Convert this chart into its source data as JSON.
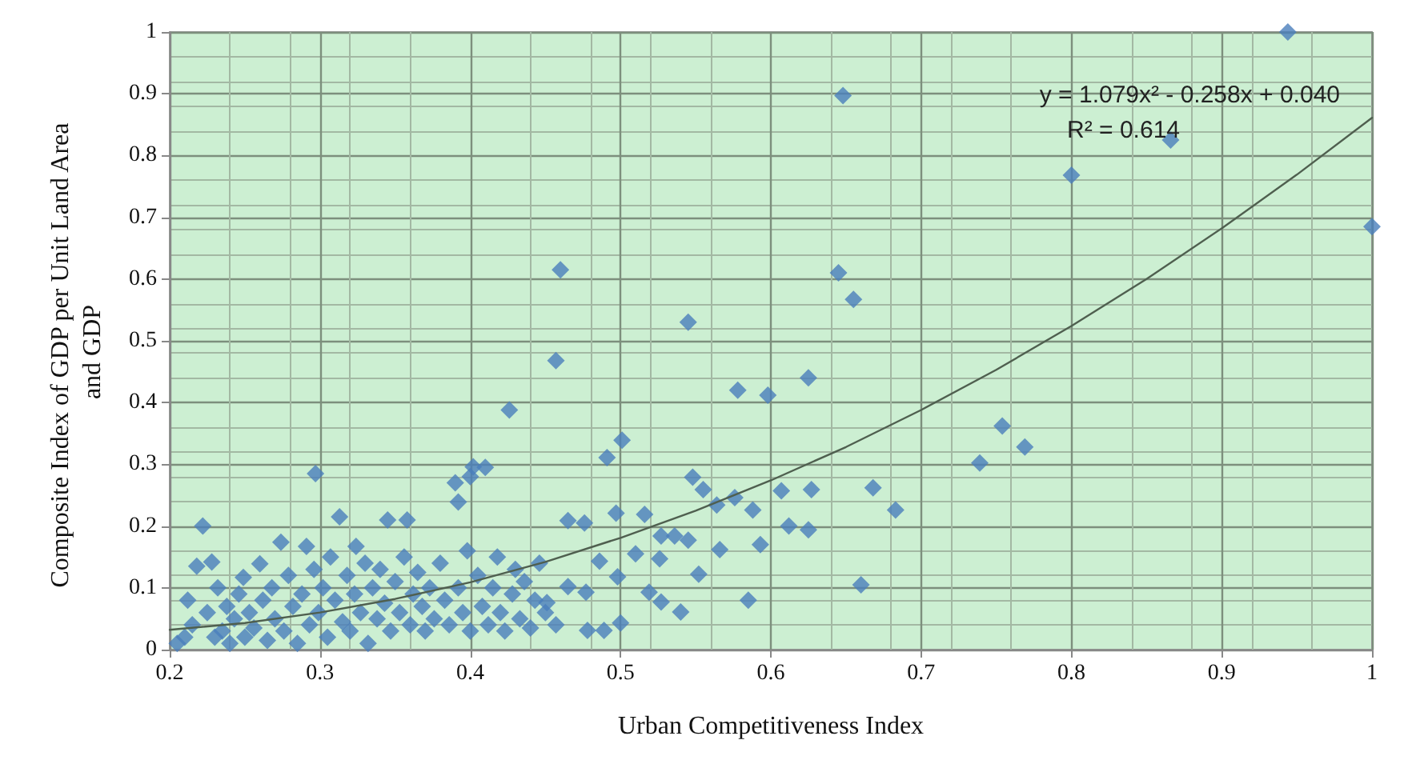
{
  "chart_data": {
    "type": "scatter",
    "xlabel": "Urban Competitiveness Index",
    "ylabel": "Composite Index of GDP per Unit Land Area and GDP",
    "annotations": [
      "y = 1.079x² - 0.258x + 0.040",
      "R² = 0.614"
    ],
    "xlim": [
      0.2,
      1
    ],
    "xticks": [
      0.2,
      0.3,
      0.4,
      0.5,
      0.6,
      0.7,
      0.8,
      0.9,
      1
    ],
    "ylim": [
      0,
      1
    ],
    "yticks": [
      0,
      0.1,
      0.2,
      0.3,
      0.4,
      0.5,
      0.6,
      0.7,
      0.8,
      0.9,
      1
    ],
    "grid": true,
    "marker": "diamond",
    "series": [
      {
        "color": "#4a7ebb",
        "x": [
          0.205,
          0.21,
          0.212,
          0.215,
          0.218,
          0.222,
          0.225,
          0.228,
          0.23,
          0.232,
          0.235,
          0.238,
          0.24,
          0.243,
          0.246,
          0.249,
          0.25,
          0.253,
          0.256,
          0.26,
          0.262,
          0.265,
          0.268,
          0.27,
          0.274,
          0.276,
          0.279,
          0.282,
          0.285,
          0.288,
          0.291,
          0.293,
          0.296,
          0.297,
          0.299,
          0.302,
          0.305,
          0.307,
          0.31,
          0.313,
          0.315,
          0.318,
          0.32,
          0.323,
          0.324,
          0.327,
          0.33,
          0.332,
          0.335,
          0.338,
          0.34,
          0.343,
          0.345,
          0.347,
          0.35,
          0.353,
          0.356,
          0.358,
          0.36,
          0.362,
          0.365,
          0.368,
          0.37,
          0.373,
          0.376,
          0.38,
          0.383,
          0.386,
          0.39,
          0.392,
          0.392,
          0.395,
          0.398,
          0.4,
          0.4,
          0.402,
          0.405,
          0.408,
          0.41,
          0.412,
          0.415,
          0.418,
          0.42,
          0.423,
          0.426,
          0.428,
          0.43,
          0.433,
          0.436,
          0.44,
          0.443,
          0.446,
          0.45,
          0.451,
          0.457,
          0.457,
          0.46,
          0.465,
          0.465,
          0.476,
          0.477,
          0.478,
          0.486,
          0.489,
          0.491,
          0.497,
          0.498,
          0.5,
          0.501,
          0.51,
          0.516,
          0.519,
          0.526,
          0.527,
          0.527,
          0.536,
          0.54,
          0.545,
          0.545,
          0.548,
          0.552,
          0.555,
          0.564,
          0.566,
          0.576,
          0.578,
          0.585,
          0.588,
          0.593,
          0.598,
          0.607,
          0.612,
          0.625,
          0.625,
          0.627,
          0.645,
          0.648,
          0.655,
          0.66,
          0.668,
          0.683,
          0.739,
          0.754,
          0.769,
          0.8,
          0.866,
          0.944,
          1.0
        ],
        "values": [
          0.01,
          0.02,
          0.08,
          0.04,
          0.135,
          0.2,
          0.06,
          0.142,
          0.02,
          0.1,
          0.03,
          0.07,
          0.01,
          0.05,
          0.09,
          0.117,
          0.02,
          0.06,
          0.035,
          0.139,
          0.08,
          0.015,
          0.1,
          0.05,
          0.174,
          0.03,
          0.12,
          0.07,
          0.01,
          0.09,
          0.167,
          0.04,
          0.13,
          0.285,
          0.06,
          0.1,
          0.02,
          0.15,
          0.08,
          0.215,
          0.045,
          0.12,
          0.03,
          0.09,
          0.167,
          0.06,
          0.14,
          0.01,
          0.1,
          0.05,
          0.13,
          0.075,
          0.21,
          0.03,
          0.11,
          0.06,
          0.15,
          0.21,
          0.04,
          0.09,
          0.125,
          0.07,
          0.03,
          0.1,
          0.05,
          0.14,
          0.08,
          0.04,
          0.27,
          0.239,
          0.1,
          0.06,
          0.16,
          0.28,
          0.03,
          0.296,
          0.12,
          0.07,
          0.295,
          0.04,
          0.1,
          0.15,
          0.06,
          0.03,
          0.388,
          0.09,
          0.13,
          0.05,
          0.11,
          0.035,
          0.08,
          0.14,
          0.06,
          0.076,
          0.468,
          0.04,
          0.615,
          0.209,
          0.102,
          0.205,
          0.093,
          0.031,
          0.143,
          0.031,
          0.311,
          0.221,
          0.118,
          0.043,
          0.339,
          0.155,
          0.219,
          0.093,
          0.147,
          0.184,
          0.077,
          0.184,
          0.061,
          0.53,
          0.177,
          0.279,
          0.122,
          0.259,
          0.234,
          0.162,
          0.246,
          0.42,
          0.08,
          0.226,
          0.17,
          0.412,
          0.257,
          0.2,
          0.44,
          0.194,
          0.259,
          0.61,
          0.897,
          0.567,
          0.105,
          0.262,
          0.226,
          0.302,
          0.362,
          0.328,
          0.768,
          0.825,
          1.0,
          0.685
        ]
      },
      {
        "type": "line",
        "color": "#4f5f4f",
        "marker": "none",
        "line_style": "solid",
        "x": [
          0.2,
          0.25,
          0.3,
          0.35,
          0.4,
          0.45,
          0.5,
          0.55,
          0.6,
          0.65,
          0.7,
          0.75,
          0.8,
          0.85,
          0.9,
          0.95,
          1.0
        ],
        "values": [
          0.032,
          0.043,
          0.06,
          0.082,
          0.109,
          0.142,
          0.181,
          0.225,
          0.274,
          0.328,
          0.388,
          0.453,
          0.524,
          0.6,
          0.682,
          0.769,
          0.861
        ]
      }
    ]
  }
}
